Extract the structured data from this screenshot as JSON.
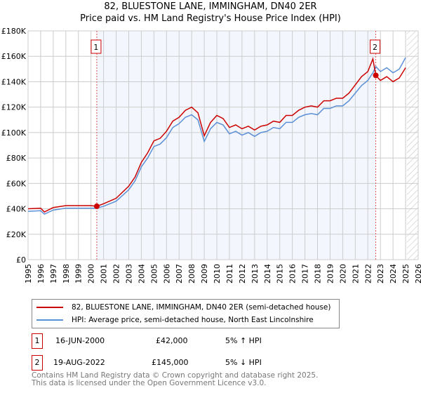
{
  "chart_data": {
    "type": "line",
    "title": "82, BLUESTONE LANE, IMMINGHAM, DN40 2ER",
    "subtitle": "Price paid vs. HM Land Registry's House Price Index (HPI)",
    "xlabel": "",
    "ylabel": "",
    "xlim": [
      1995,
      2026
    ],
    "ylim": [
      0,
      180000
    ],
    "yticks": [
      "£0",
      "£20K",
      "£40K",
      "£60K",
      "£80K",
      "£100K",
      "£120K",
      "£140K",
      "£160K",
      "£180K"
    ],
    "xticks": [
      "1995",
      "1996",
      "1997",
      "1998",
      "1999",
      "2000",
      "2001",
      "2002",
      "2003",
      "2004",
      "2005",
      "2006",
      "2007",
      "2008",
      "2009",
      "2010",
      "2011",
      "2012",
      "2013",
      "2014",
      "2015",
      "2016",
      "2017",
      "2018",
      "2019",
      "2020",
      "2021",
      "2022",
      "2023",
      "2024",
      "2025",
      "2026"
    ],
    "grid": true,
    "x": [
      1995,
      1996,
      1996.3,
      1997,
      1998,
      1999,
      2000,
      2000.46,
      2001,
      2002,
      2003,
      2003.5,
      2004,
      2004.5,
      2005,
      2005.5,
      2006,
      2006.5,
      2007,
      2007.5,
      2008,
      2008.5,
      2009,
      2009.5,
      2010,
      2010.5,
      2011,
      2011.5,
      2012,
      2012.5,
      2013,
      2013.5,
      2014,
      2014.5,
      2015,
      2015.5,
      2016,
      2016.5,
      2017,
      2017.5,
      2018,
      2018.5,
      2019,
      2019.5,
      2020,
      2020.5,
      2021,
      2021.5,
      2022,
      2022.4,
      2022.63,
      2023,
      2023.5,
      2024,
      2024.5,
      2025
    ],
    "series": [
      {
        "name": "82, BLUESTONE LANE, IMMINGHAM, DN40 2ER (semi-detached house)",
        "color": "#cc0000",
        "values": [
          40000,
          40500,
          37500,
          41000,
          42500,
          42500,
          42500,
          42000,
          44000,
          48300,
          57800,
          65000,
          76500,
          84000,
          93500,
          95500,
          101000,
          109000,
          112000,
          117500,
          120000,
          115500,
          97500,
          108000,
          113500,
          111000,
          104000,
          106000,
          103000,
          105000,
          102000,
          105000,
          106000,
          109000,
          108000,
          113500,
          113500,
          117500,
          120000,
          121000,
          120000,
          125000,
          125000,
          127000,
          127000,
          131000,
          137500,
          144000,
          148000,
          158000,
          145000,
          141000,
          144000,
          140000,
          143000,
          151000
        ]
      },
      {
        "name": "HPI: Average price, semi-detached house, North East Lincolnshire",
        "color": "#5b8fd6",
        "values": [
          38000,
          38500,
          35800,
          39000,
          40500,
          40500,
          40500,
          40500,
          42000,
          46000,
          55000,
          62000,
          73000,
          80000,
          89000,
          91000,
          96000,
          104000,
          107000,
          112000,
          114000,
          110000,
          93000,
          103000,
          108000,
          106000,
          99000,
          101000,
          98000,
          100000,
          97000,
          100000,
          101000,
          104000,
          103000,
          108000,
          108000,
          112000,
          114000,
          115000,
          114000,
          119000,
          119000,
          121000,
          121000,
          125000,
          131000,
          137000,
          141000,
          147000,
          152000,
          148000,
          151000,
          147000,
          150000,
          159000
        ]
      }
    ],
    "sales": [
      {
        "label": "1",
        "x": 2000.46,
        "value": 42000
      },
      {
        "label": "2",
        "x": 2022.63,
        "value": 145000
      }
    ],
    "shaded_range": [
      2000.46,
      2022.63
    ],
    "hatched_from": 2025.1,
    "legend_placement": "below"
  },
  "legend": {
    "items": [
      {
        "label": "82, BLUESTONE LANE, IMMINGHAM, DN40 2ER (semi-detached house)",
        "color": "#cc0000"
      },
      {
        "label": "HPI: Average price, semi-detached house, North East Lincolnshire",
        "color": "#5b8fd6"
      }
    ]
  },
  "sales_table": [
    {
      "num": "1",
      "date": "16-JUN-2000",
      "price": "£42,000",
      "hpi": "5% ↑ HPI"
    },
    {
      "num": "2",
      "date": "19-AUG-2022",
      "price": "£145,000",
      "hpi": "5% ↓ HPI"
    }
  ],
  "footer": {
    "line1": "Contains HM Land Registry data © Crown copyright and database right 2025.",
    "line2": "This data is licensed under the Open Government Licence v3.0."
  }
}
